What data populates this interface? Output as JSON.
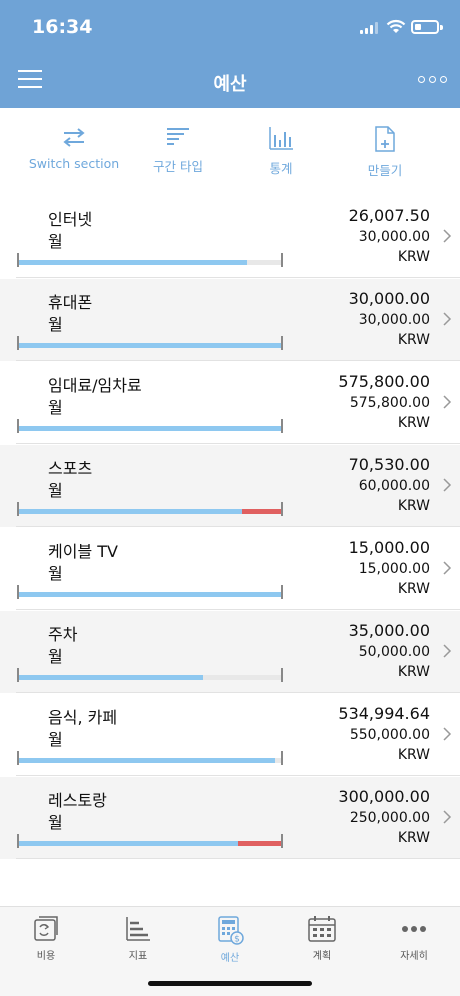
{
  "status_bar": {
    "time": "16:34",
    "battery_level": 0.25
  },
  "header": {
    "title": "예산"
  },
  "toolbar": {
    "items": [
      {
        "label": "Switch section",
        "icon": "swap-arrows-icon"
      },
      {
        "label": "구간 타입",
        "icon": "sort-lines-icon"
      },
      {
        "label": "통계",
        "icon": "bar-stats-icon"
      },
      {
        "label": "만들기",
        "icon": "new-document-icon"
      }
    ]
  },
  "colors": {
    "accent": "#6fa3d6",
    "progress": "#8ec8f0",
    "overspent": "#e06060"
  },
  "budgets": [
    {
      "name": "인터넷",
      "period": "월",
      "spent": "26,007.50",
      "budget": "30,000.00",
      "currency": "KRW",
      "progress": 0.867,
      "over": 0
    },
    {
      "name": "휴대폰",
      "period": "월",
      "spent": "30,000.00",
      "budget": "30,000.00",
      "currency": "KRW",
      "progress": 1.0,
      "over": 0
    },
    {
      "name": "임대료/임차료",
      "period": "월",
      "spent": "575,800.00",
      "budget": "575,800.00",
      "currency": "KRW",
      "progress": 1.0,
      "over": 0
    },
    {
      "name": "스포츠",
      "period": "월",
      "spent": "70,530.00",
      "budget": "60,000.00",
      "currency": "KRW",
      "progress": 0.85,
      "over": 0.15
    },
    {
      "name": "케이블 TV",
      "period": "월",
      "spent": "15,000.00",
      "budget": "15,000.00",
      "currency": "KRW",
      "progress": 1.0,
      "over": 0
    },
    {
      "name": "주차",
      "period": "월",
      "spent": "35,000.00",
      "budget": "50,000.00",
      "currency": "KRW",
      "progress": 0.7,
      "over": 0
    },
    {
      "name": "음식, 카페",
      "period": "월",
      "spent": "534,994.64",
      "budget": "550,000.00",
      "currency": "KRW",
      "progress": 0.973,
      "over": 0
    },
    {
      "name": "레스토랑",
      "period": "월",
      "spent": "300,000.00",
      "budget": "250,000.00",
      "currency": "KRW",
      "progress": 0.833,
      "over": 0.167
    }
  ],
  "tabbar": {
    "items": [
      {
        "label": "비용",
        "icon": "expense-icon"
      },
      {
        "label": "지표",
        "icon": "chart-icon"
      },
      {
        "label": "예산",
        "icon": "budget-calculator-icon",
        "active": true
      },
      {
        "label": "계획",
        "icon": "calendar-icon"
      },
      {
        "label": "자세히",
        "icon": "more-dots-icon"
      }
    ]
  }
}
